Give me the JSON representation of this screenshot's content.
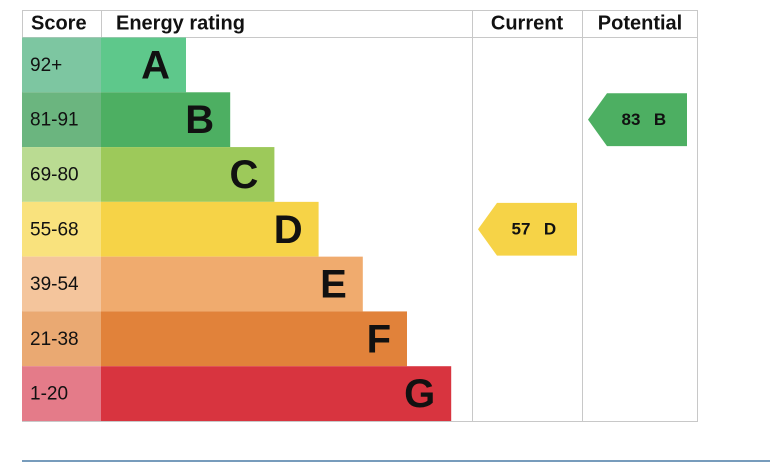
{
  "header": {
    "score": "Score",
    "energy_rating": "Energy rating",
    "current": "Current",
    "potential": "Potential"
  },
  "bands": [
    {
      "score": "92+",
      "letter": "A",
      "color": "#5ec88b",
      "score_color": "#7dc6a1"
    },
    {
      "score": "81-91",
      "letter": "B",
      "color": "#4daf62",
      "score_color": "#6bb57f"
    },
    {
      "score": "69-80",
      "letter": "C",
      "color": "#9dc95a",
      "score_color": "#badb92"
    },
    {
      "score": "55-68",
      "letter": "D",
      "color": "#f6d347",
      "score_color": "#f9e27d"
    },
    {
      "score": "39-54",
      "letter": "E",
      "color": "#f0ab6e",
      "score_color": "#f4c59c"
    },
    {
      "score": "21-38",
      "letter": "F",
      "color": "#e1823a",
      "score_color": "#eaa972"
    },
    {
      "score": "1-20",
      "letter": "G",
      "color": "#d8343f",
      "score_color": "#e47b89"
    }
  ],
  "current": {
    "value": 57,
    "letter": "D"
  },
  "potential": {
    "value": 83,
    "letter": "B"
  }
}
